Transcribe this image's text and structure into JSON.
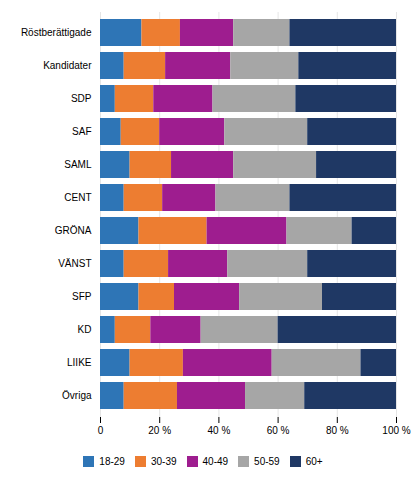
{
  "chart_data": {
    "type": "bar",
    "orientation": "horizontal",
    "stacked": true,
    "categories": [
      "Röstberättigade",
      "Kandidater",
      "SDP",
      "SAF",
      "SAML",
      "CENT",
      "GRÖNA",
      "VÄNST",
      "SFP",
      "KD",
      "LIIKE",
      "Övriga"
    ],
    "series": [
      {
        "name": "18-29",
        "color": "#2E75B6",
        "values": [
          14,
          8,
          5,
          7,
          10,
          8,
          13,
          8,
          13,
          5,
          10,
          8
        ]
      },
      {
        "name": "30-39",
        "color": "#ED7D31",
        "values": [
          13,
          14,
          13,
          13,
          14,
          13,
          23,
          15,
          12,
          12,
          18,
          18
        ]
      },
      {
        "name": "40-49",
        "color": "#9E1D8F",
        "values": [
          18,
          22,
          20,
          22,
          21,
          18,
          27,
          20,
          22,
          17,
          30,
          23
        ]
      },
      {
        "name": "50-59",
        "color": "#A6A6A6",
        "values": [
          19,
          23,
          28,
          28,
          28,
          25,
          22,
          27,
          28,
          26,
          30,
          20
        ]
      },
      {
        "name": "60+",
        "color": "#1F3864",
        "values": [
          36,
          33,
          34,
          30,
          27,
          36,
          15,
          30,
          25,
          40,
          12,
          31
        ]
      }
    ],
    "xlim": [
      0,
      100
    ],
    "xticks": [
      0,
      {
        "value": 20,
        "label": "20 %"
      },
      {
        "value": 40,
        "label": "40 %"
      },
      {
        "value": 60,
        "label": "60 %"
      },
      {
        "value": 80,
        "label": "80 %"
      },
      {
        "value": 100,
        "label": "100 %"
      }
    ],
    "grid": true,
    "legend": "bottom"
  }
}
